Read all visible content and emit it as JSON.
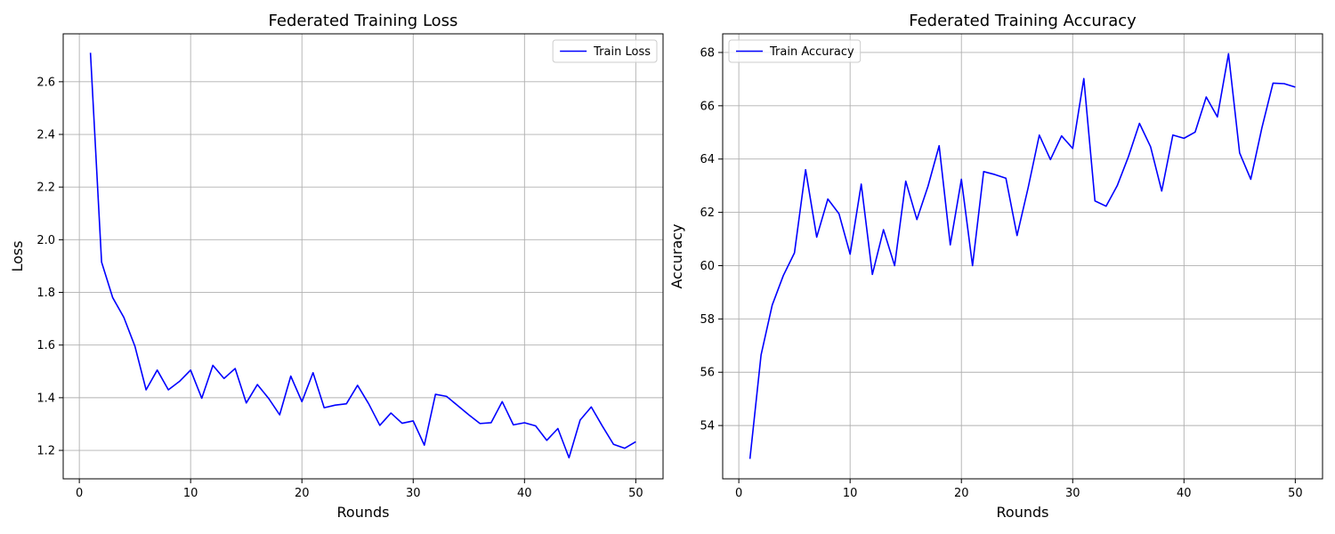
{
  "chart_data": [
    {
      "type": "line",
      "title": "Federated Training Loss",
      "xlabel": "Rounds",
      "ylabel": "Loss",
      "xlim": [
        -1.45,
        52.45
      ],
      "ylim": [
        1.092,
        2.782
      ],
      "xticks": [
        0,
        10,
        20,
        30,
        40,
        50
      ],
      "yticks": [
        1.2,
        1.4,
        1.6,
        1.8,
        2.0,
        2.2,
        2.4,
        2.6
      ],
      "ytick_labels": [
        "1.2",
        "1.4",
        "1.6",
        "1.8",
        "2.0",
        "2.2",
        "2.4",
        "2.6"
      ],
      "grid": true,
      "legend": "upper-right",
      "series": [
        {
          "name": "Train Loss",
          "color": "#0000ff",
          "x": [
            1,
            2,
            3,
            4,
            5,
            6,
            7,
            8,
            9,
            10,
            11,
            12,
            13,
            14,
            15,
            16,
            17,
            18,
            19,
            20,
            21,
            22,
            23,
            24,
            25,
            26,
            27,
            28,
            29,
            30,
            31,
            32,
            33,
            34,
            35,
            36,
            37,
            38,
            39,
            40,
            41,
            42,
            43,
            44,
            45,
            46,
            47,
            48,
            49,
            50
          ],
          "y": [
            2.71,
            1.915,
            1.78,
            1.705,
            1.595,
            1.43,
            1.505,
            1.43,
            1.462,
            1.505,
            1.398,
            1.523,
            1.473,
            1.511,
            1.38,
            1.45,
            1.398,
            1.335,
            1.482,
            1.385,
            1.495,
            1.362,
            1.372,
            1.377,
            1.447,
            1.377,
            1.295,
            1.342,
            1.303,
            1.312,
            1.22,
            1.413,
            1.405,
            1.37,
            1.335,
            1.302,
            1.305,
            1.385,
            1.297,
            1.305,
            1.293,
            1.238,
            1.283,
            1.172,
            1.315,
            1.365,
            1.292,
            1.223,
            1.208,
            1.233
          ]
        }
      ]
    },
    {
      "type": "line",
      "title": "Federated Training Accuracy",
      "xlabel": "Rounds",
      "ylabel": "Accuracy",
      "xlim": [
        -1.45,
        52.45
      ],
      "ylim": [
        52.0,
        68.7
      ],
      "xticks": [
        0,
        10,
        20,
        30,
        40,
        50
      ],
      "yticks": [
        54,
        56,
        58,
        60,
        62,
        64,
        66,
        68
      ],
      "ytick_labels": [
        "54",
        "56",
        "58",
        "60",
        "62",
        "64",
        "66",
        "68"
      ],
      "grid": true,
      "legend": "upper-left",
      "series": [
        {
          "name": "Train Accuracy",
          "color": "#0000ff",
          "x": [
            1,
            2,
            3,
            4,
            5,
            6,
            7,
            8,
            9,
            10,
            11,
            12,
            13,
            14,
            15,
            16,
            17,
            18,
            19,
            20,
            21,
            22,
            23,
            24,
            25,
            26,
            27,
            28,
            29,
            30,
            31,
            32,
            33,
            34,
            35,
            36,
            37,
            38,
            39,
            40,
            41,
            42,
            43,
            44,
            45,
            46,
            47,
            48,
            49,
            50
          ],
          "y": [
            52.75,
            56.65,
            58.52,
            59.63,
            60.48,
            63.6,
            61.07,
            62.5,
            61.95,
            60.43,
            63.06,
            59.67,
            61.35,
            60.0,
            63.17,
            61.73,
            62.98,
            64.5,
            60.78,
            63.24,
            60.0,
            63.53,
            63.42,
            63.28,
            61.13,
            62.93,
            64.9,
            63.98,
            64.87,
            64.4,
            67.02,
            62.43,
            62.23,
            63.0,
            64.08,
            65.34,
            64.46,
            62.8,
            64.9,
            64.78,
            65.01,
            66.33,
            65.58,
            67.95,
            64.23,
            63.24,
            65.17,
            66.85,
            66.83,
            66.7
          ]
        }
      ]
    }
  ]
}
